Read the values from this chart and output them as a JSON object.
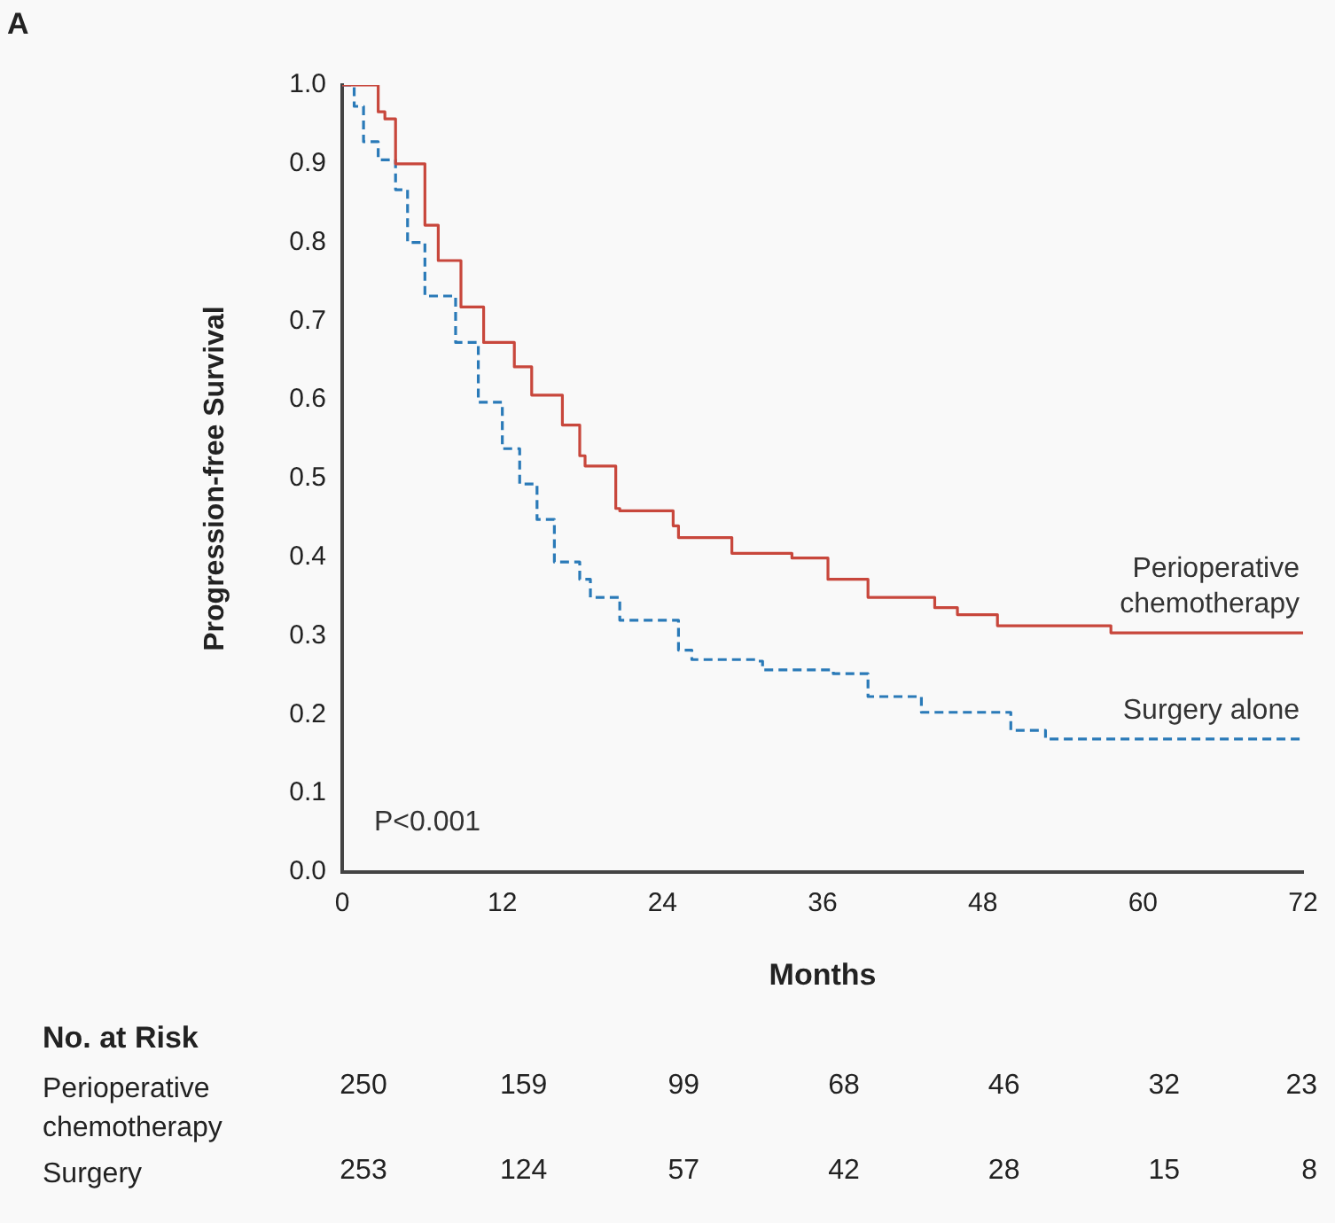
{
  "chart_data": {
    "type": "step",
    "title": "A",
    "xlabel": "Months",
    "ylabel": "Progression-free Survival",
    "xlim": [
      0,
      72
    ],
    "xticks": [
      0,
      12,
      24,
      36,
      48,
      60,
      72
    ],
    "ylim": [
      0,
      1
    ],
    "yticks": [
      {
        "value": 0,
        "label": "0.0"
      },
      0.1,
      0.2,
      0.3,
      0.4,
      0.5,
      0.6,
      0.7,
      0.8,
      0.9,
      {
        "value": 1,
        "label": "1.0"
      }
    ],
    "grid": false,
    "legend": false,
    "series": [
      {
        "name": "Perioperative chemotherapy",
        "color": "#c8473c",
        "line_style": "solid",
        "x": [
          0,
          0.3,
          2.7,
          3.2,
          4.0,
          6.2,
          7.2,
          8.9,
          10.6,
          12.9,
          14.2,
          16.5,
          17.8,
          18.2,
          20.5,
          20.8,
          24.8,
          25.2,
          29.2,
          33.7,
          36.4,
          39.4,
          44.4,
          46.1,
          49.1,
          57.6,
          72
        ],
        "values": [
          1.0,
          1.0,
          0.966,
          0.957,
          0.9,
          0.822,
          0.777,
          0.718,
          0.673,
          0.642,
          0.606,
          0.568,
          0.529,
          0.516,
          0.462,
          0.459,
          0.44,
          0.425,
          0.405,
          0.399,
          0.372,
          0.349,
          0.336,
          0.327,
          0.313,
          0.304,
          0.304
        ]
      },
      {
        "name": "Surgery alone",
        "color": "#2a7ab8",
        "line_style": "dashed",
        "x": [
          0,
          0.9,
          1.6,
          2.7,
          4.0,
          4.9,
          6.2,
          8.5,
          10.2,
          12.0,
          13.3,
          14.6,
          15.9,
          17.8,
          18.6,
          20.8,
          25.2,
          26.2,
          31.1,
          31.5,
          36.8,
          39.4,
          42.5,
          43.4,
          49.1,
          50.1,
          52.7,
          72
        ],
        "values": [
          1.0,
          0.973,
          0.928,
          0.905,
          0.867,
          0.8,
          0.732,
          0.673,
          0.597,
          0.538,
          0.493,
          0.448,
          0.394,
          0.372,
          0.349,
          0.32,
          0.282,
          0.27,
          0.268,
          0.257,
          0.252,
          0.223,
          0.223,
          0.203,
          0.203,
          0.18,
          0.169,
          0.169
        ]
      }
    ],
    "annotations": [
      "P<0.001",
      "No. at Risk",
      "Perioperative chemotherapy",
      "250",
      "159",
      "99",
      "68",
      "46",
      "32",
      "23",
      "Surgery",
      "253",
      "124",
      "57",
      "42",
      "28",
      "15",
      "8"
    ]
  }
}
